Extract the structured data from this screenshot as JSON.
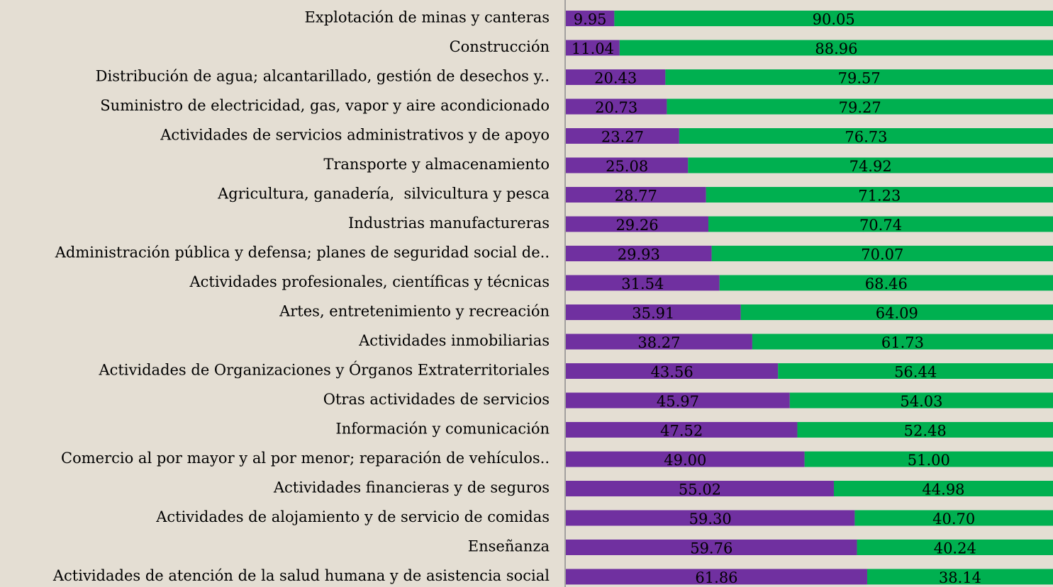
{
  "chart_data": {
    "type": "stacked_bar_horizontal",
    "categories": [
      "Explotación de minas y canteras",
      "Construcción",
      "Distribución de agua; alcantarillado, gestión de desechos y..",
      "Suministro de electricidad, gas, vapor y aire acondicionado",
      "Actividades de servicios administrativos y de apoyo",
      "Transporte y almacenamiento",
      "Agricultura, ganadería,  silvicultura y pesca",
      "Industrias manufactureras",
      "Administración pública y defensa; planes de seguridad social de..",
      "Actividades profesionales, científicas y técnicas",
      "Artes, entretenimiento y recreación",
      "Actividades inmobiliarias",
      "Actividades de Organizaciones y Órganos Extraterritoriales",
      "Otras actividades de servicios",
      "Información y comunicación",
      "Comercio al por mayor y al por menor; reparación de vehículos..",
      "Actividades financieras y de seguros",
      "Actividades de alojamiento y de servicio de comidas",
      "Enseñanza",
      "Actividades de atención de la salud humana y de asistencia social"
    ],
    "series": [
      {
        "color": "#7030a0",
        "values": [
          9.95,
          11.04,
          20.43,
          20.73,
          23.27,
          25.08,
          28.77,
          29.26,
          29.93,
          31.54,
          35.91,
          38.27,
          43.56,
          45.97,
          47.52,
          49.0,
          55.02,
          59.3,
          59.76,
          61.86
        ],
        "value_labels": [
          "9.95",
          "11.04",
          "20.43",
          "20.73",
          "23.27",
          "25.08",
          "28.77",
          "29.26",
          "29.93",
          "31.54",
          "35.91",
          "38.27",
          "43.56",
          "45.97",
          "47.52",
          "49.00",
          "55.02",
          "59.30",
          "59.76",
          "61.86"
        ]
      },
      {
        "color": "#00b050",
        "values": [
          90.05,
          88.96,
          79.57,
          79.27,
          76.73,
          74.92,
          71.23,
          70.74,
          70.07,
          68.46,
          64.09,
          61.73,
          56.44,
          54.03,
          52.48,
          51.0,
          44.98,
          40.7,
          40.24,
          38.14
        ],
        "value_labels": [
          "90.05",
          "88.96",
          "79.57",
          "79.27",
          "76.73",
          "74.92",
          "71.23",
          "70.74",
          "70.07",
          "68.46",
          "64.09",
          "61.73",
          "56.44",
          "54.03",
          "52.48",
          "51.00",
          "44.98",
          "40.70",
          "40.24",
          "38.14"
        ]
      }
    ],
    "xlim": [
      0,
      100
    ]
  }
}
